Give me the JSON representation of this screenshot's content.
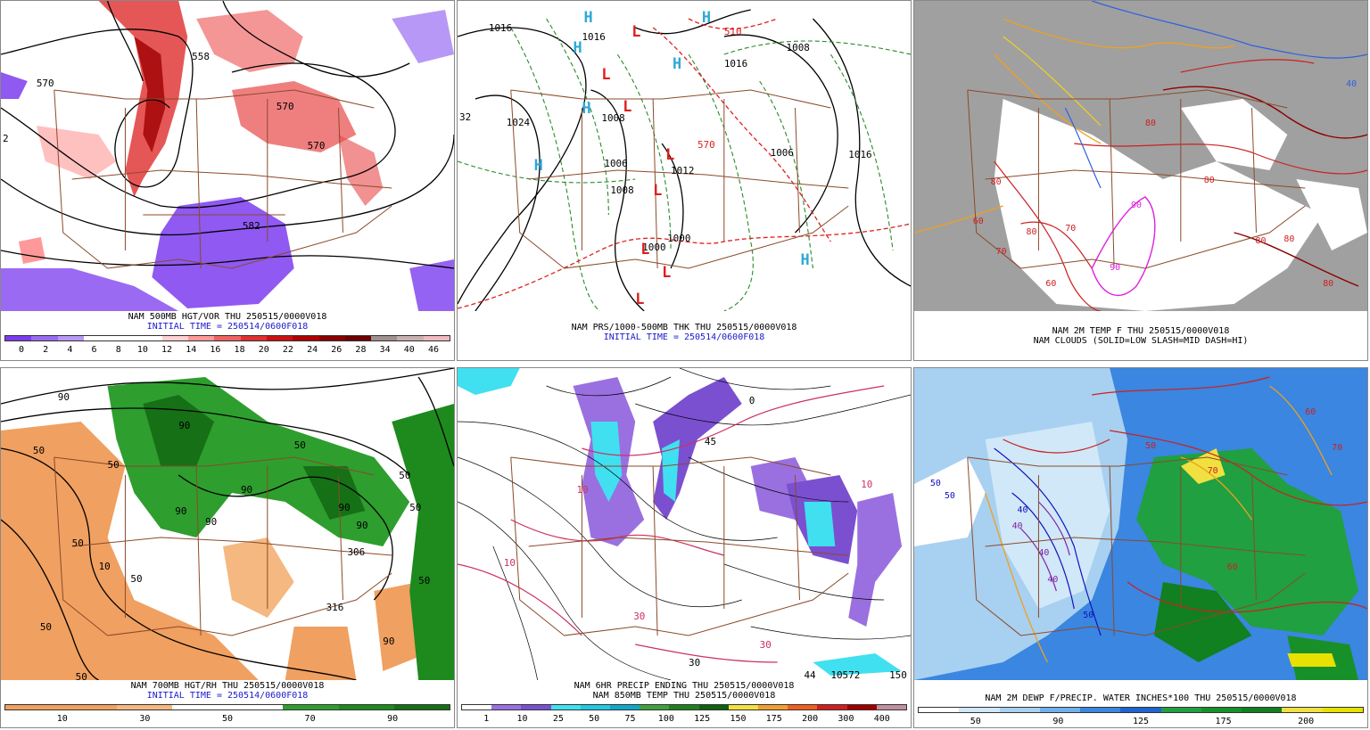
{
  "panels": [
    {
      "id": "p1",
      "caption1": "NAM 500MB HGT/VOR THU 250515/0000V018",
      "caption2": "INITIAL TIME = 250514/0600F018",
      "colorbar": [
        "#7b3cf0",
        "#9a6cf2",
        "#b898f5",
        "#ffffff",
        "#ffffff",
        "#ffffff",
        "#ffd0d0",
        "#ff9a9a",
        "#f06262",
        "#e03030",
        "#cc1010",
        "#b00000",
        "#8a0000",
        "#6e0000",
        "#a09090",
        "#c8b0b0",
        "#f0b8c0"
      ],
      "ticks": [
        "0",
        "2",
        "4",
        "6",
        "8",
        "10",
        "12",
        "14",
        "16",
        "18",
        "20",
        "22",
        "24",
        "26",
        "28",
        "34",
        "40",
        "46"
      ],
      "labels": [
        "570",
        "558",
        "570",
        "570",
        "582",
        "2"
      ]
    },
    {
      "id": "p2",
      "caption1": "NAM PRS/1000-500MB THK THU 250515/0000V018",
      "caption2": "INITIAL TIME = 250514/0600F018",
      "labels": [
        "1016",
        "1016",
        "1008",
        "1016",
        "1024",
        "1008",
        "1006",
        "1008",
        "1000",
        "1012",
        "1000",
        "1016",
        "1006",
        "510",
        "570",
        "32"
      ],
      "highs": [
        "H",
        "H",
        "H",
        "H",
        "H",
        "H"
      ],
      "lows": [
        "L",
        "L",
        "L",
        "L",
        "L",
        "L",
        "L",
        "L"
      ]
    },
    {
      "id": "p3",
      "caption1": "NAM 2M TEMP F THU 250515/0000V018",
      "caption2": "NAM CLOUDS (SOLID=LOW SLASH=MID DASH=HI)",
      "labels": [
        "80",
        "70",
        "60",
        "90",
        "80",
        "80",
        "80",
        "90",
        "60",
        "70",
        "80",
        "80",
        "80",
        "40"
      ]
    },
    {
      "id": "p4",
      "caption1": "NAM 700MB HGT/RH THU 250515/0000V018",
      "caption2": "INITIAL TIME = 250514/0600F018",
      "colorbar": [
        "#f0a060",
        "#f0a060",
        "#f4b880",
        "#ffffff",
        "#ffffff",
        "#2e9e2e",
        "#1e8a1e",
        "#167016"
      ],
      "ticks": [
        "10",
        "30",
        "50",
        "70",
        "90"
      ],
      "labels": [
        "50",
        "50",
        "90",
        "90",
        "50",
        "50",
        "90",
        "90",
        "90",
        "50",
        "90",
        "50",
        "50",
        "10",
        "50",
        "50",
        "90",
        "316",
        "50",
        "306",
        "90"
      ]
    },
    {
      "id": "p5",
      "caption1": "NAM 6HR PRECIP ENDING THU 250515/0000V018",
      "caption2": "NAM 850MB TEMP THU 250515/0000V018",
      "colorbar": [
        "#ffffff",
        "#9a70e0",
        "#7a50d0",
        "#40e0f0",
        "#20c8e0",
        "#10a8c8",
        "#40a040",
        "#208020",
        "#106010",
        "#f0e040",
        "#f0a030",
        "#f06020",
        "#d02020",
        "#a00000",
        "#c090a0"
      ],
      "ticks": [
        "1",
        "10",
        "25",
        "50",
        "75",
        "100",
        "125",
        "150",
        "175",
        "200",
        "300",
        "400"
      ],
      "labels": [
        "0",
        "45",
        "10",
        "10",
        "30",
        "30",
        "30",
        "10",
        "44",
        "10572",
        "150"
      ]
    },
    {
      "id": "p6",
      "caption1": "NAM 2M DEWP F/PRECIP. WATER INCHES*100 THU 250515/0000V018",
      "colorbar": [
        "#ffffff",
        "#d0e8f8",
        "#a8d0f0",
        "#70b0ec",
        "#3a86e0",
        "#1e64d0",
        "#20a040",
        "#18902a",
        "#108020",
        "#f0e040",
        "#e8e000"
      ],
      "ticks": [
        "50",
        "90",
        "125",
        "175",
        "200"
      ],
      "labels": [
        "50",
        "50",
        "40",
        "40",
        "40",
        "50",
        "60",
        "70",
        "40",
        "60",
        "50",
        "70"
      ]
    }
  ]
}
